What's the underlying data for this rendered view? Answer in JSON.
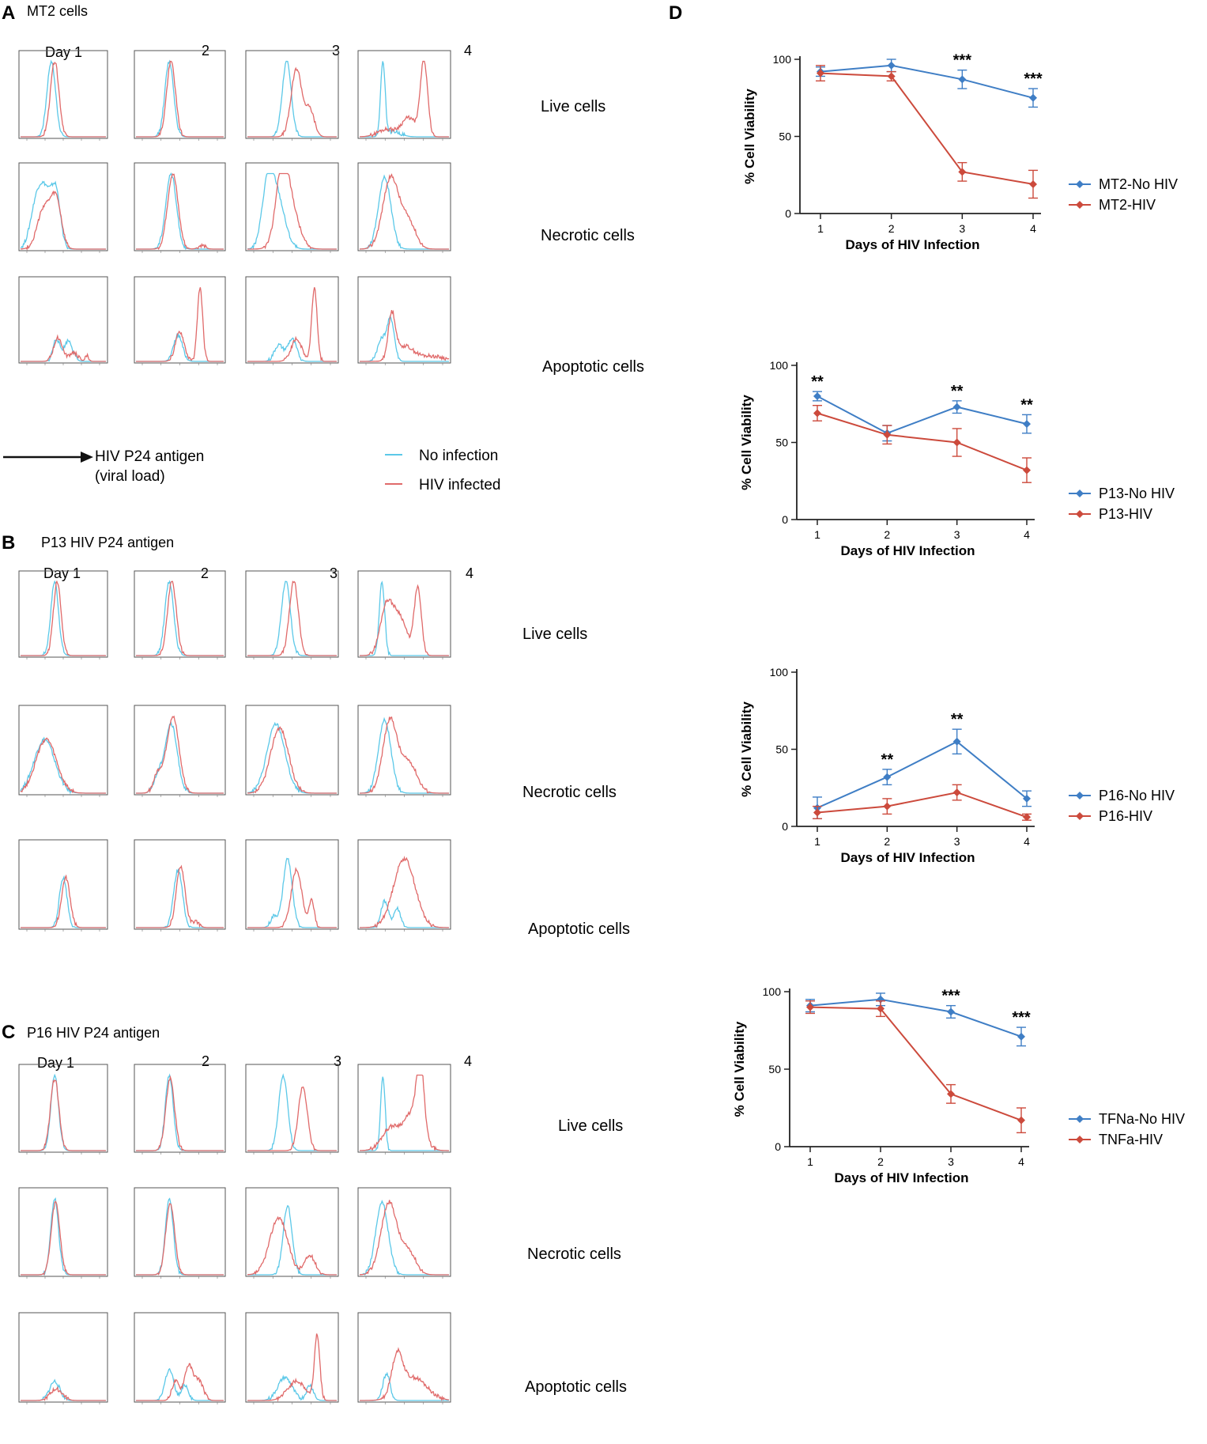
{
  "colors": {
    "no_infection": "#5bc8e8",
    "hiv_infected": "#e06a6a",
    "no_hiv_line": "#3f7ec5",
    "hiv_line": "#cc4a3c",
    "axis": "#222222"
  },
  "panels": {
    "A": {
      "letter": "A",
      "title": "MT2 cells",
      "days": [
        "Day 1",
        "2",
        "3",
        "4"
      ],
      "rows": [
        "Live cells",
        "Necrotic cells",
        "Apoptotic cells"
      ]
    },
    "B": {
      "letter": "B",
      "title": "P13 HIV P24 antigen",
      "days": [
        "Day 1",
        "2",
        "3",
        "4"
      ],
      "rows": [
        "Live cells",
        "Necrotic cells",
        "Apoptotic cells"
      ]
    },
    "C": {
      "letter": "C",
      "title": "P16 HIV P24 antigen",
      "days": [
        "Day 1",
        "2",
        "3",
        "4"
      ],
      "rows": [
        "Live cells",
        "Necrotic cells",
        "Apoptotic cells"
      ]
    },
    "D": {
      "letter": "D"
    }
  },
  "histogram_legend": {
    "axis_label": "HIV P24 antigen",
    "axis_label_sub": "(viral load)",
    "no_infection": "No infection",
    "hiv_infected": "HIV infected"
  },
  "chart_data": [
    {
      "type": "line",
      "x": [
        1,
        2,
        3,
        4
      ],
      "xlabel": "Days of HIV Infection",
      "ylabel": "% Cell Viability",
      "ylim": [
        0,
        100
      ],
      "yticks": [
        0,
        50,
        100
      ],
      "series": [
        {
          "name": "MT2-No HIV",
          "values": [
            92,
            96,
            87,
            75
          ],
          "errors": [
            3,
            4,
            6,
            6
          ]
        },
        {
          "name": "MT2-HIV",
          "values": [
            91,
            89,
            27,
            19
          ],
          "errors": [
            5,
            3,
            6,
            9
          ]
        }
      ],
      "annotations": [
        {
          "x": 3,
          "text": "***"
        },
        {
          "x": 4,
          "text": "***"
        }
      ]
    },
    {
      "type": "line",
      "x": [
        1,
        2,
        3,
        4
      ],
      "xlabel": "Days of HIV Infection",
      "ylabel": "% Cell Viability",
      "ylim": [
        0,
        100
      ],
      "yticks": [
        0,
        50,
        100
      ],
      "series": [
        {
          "name": "P13-No HIV",
          "values": [
            80,
            56,
            73,
            62
          ],
          "errors": [
            3,
            5,
            4,
            6
          ]
        },
        {
          "name": "P13-HIV",
          "values": [
            69,
            55,
            50,
            32
          ],
          "errors": [
            5,
            6,
            9,
            8
          ]
        }
      ],
      "annotations": [
        {
          "x": 1,
          "text": "**"
        },
        {
          "x": 3,
          "text": "**"
        },
        {
          "x": 4,
          "text": "**"
        }
      ]
    },
    {
      "type": "line",
      "x": [
        1,
        2,
        3,
        4
      ],
      "xlabel": "Days of HIV Infection",
      "ylabel": "% Cell Viability",
      "ylim": [
        0,
        100
      ],
      "yticks": [
        0,
        50,
        100
      ],
      "series": [
        {
          "name": "P16-No HIV",
          "values": [
            12,
            32,
            55,
            18
          ],
          "errors": [
            7,
            5,
            8,
            5
          ]
        },
        {
          "name": "P16-HIV",
          "values": [
            9,
            13,
            22,
            6
          ],
          "errors": [
            4,
            5,
            5,
            2
          ]
        }
      ],
      "annotations": [
        {
          "x": 2,
          "text": "**"
        },
        {
          "x": 3,
          "text": "**"
        }
      ]
    },
    {
      "type": "line",
      "x": [
        1,
        2,
        3,
        4
      ],
      "xlabel": "Days of HIV Infection",
      "ylabel": "% Cell Viability",
      "ylim": [
        0,
        100
      ],
      "yticks": [
        0,
        50,
        100
      ],
      "series": [
        {
          "name": "TFNa-No HIV",
          "values": [
            91,
            95,
            87,
            71
          ],
          "errors": [
            4,
            4,
            4,
            6
          ]
        },
        {
          "name": "TNFa-HIV",
          "values": [
            90,
            89,
            34,
            17
          ],
          "errors": [
            4,
            5,
            6,
            8
          ]
        }
      ],
      "annotations": [
        {
          "x": 3,
          "text": "***"
        },
        {
          "x": 4,
          "text": "***"
        }
      ]
    }
  ]
}
